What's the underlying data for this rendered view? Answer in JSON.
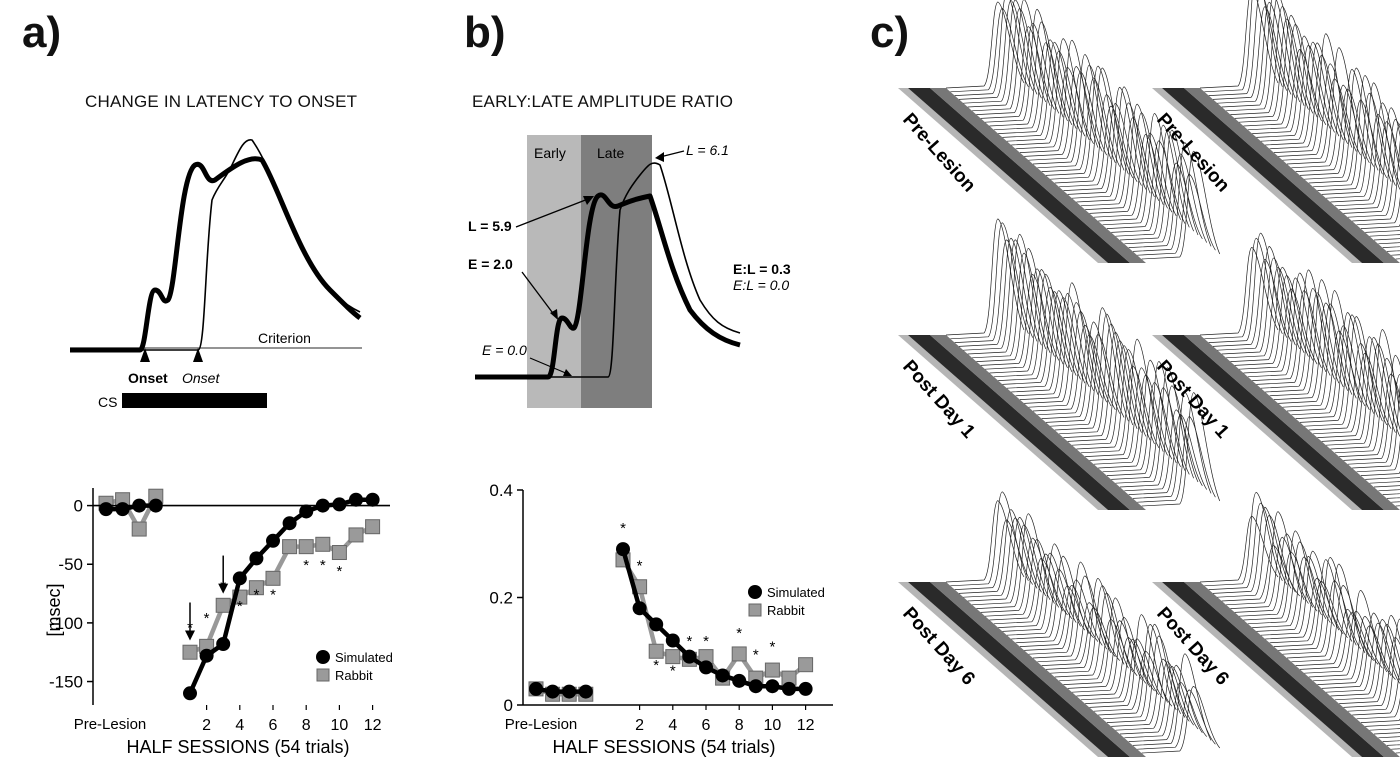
{
  "panels": {
    "a": {
      "letter": "a)",
      "title": "CHANGE IN LATENCY TO ONSET",
      "labels": {
        "criterion": "Criterion",
        "onset_bold": "Onset",
        "onset_italic": "Onset",
        "cs": "CS"
      }
    },
    "b": {
      "letter": "b)",
      "title": "EARLY:LATE AMPLITUDE RATIO",
      "labels": {
        "early": "Early",
        "late": "Late",
        "L61": "L = 6.1",
        "L59": "L = 5.9",
        "E20": "E = 2.0",
        "E00": "E = 0.0",
        "EL03": "E:L = 0.3",
        "EL00": "E:L = 0.0"
      }
    },
    "c": {
      "letter": "c)",
      "row_labels": [
        "Pre-Lesion",
        "Post Day 1",
        "Post Day 6"
      ]
    }
  },
  "chart_data": [
    {
      "type": "line",
      "ylabel": "[msec]",
      "xlabel": "HALF SESSIONS (54 trials)",
      "ylim": [
        -170,
        15
      ],
      "yticks": [
        0,
        -50,
        -100,
        -150
      ],
      "yticklabels": [
        "0",
        "-50",
        "-100",
        "-150"
      ],
      "xtick_labels": [
        "Pre-Lesion",
        "2",
        "4",
        "6",
        "8",
        "10",
        "12"
      ],
      "prelesion_x": [
        1,
        2,
        3,
        4
      ],
      "postlesion_x": [
        1,
        2,
        3,
        4,
        5,
        6,
        7,
        8,
        9,
        10,
        11,
        12
      ],
      "series": [
        {
          "name": "Simulated",
          "pre": [
            -3,
            -3,
            0,
            0
          ],
          "post": [
            -160,
            -128,
            -118,
            -62,
            -45,
            -30,
            -15,
            -5,
            0,
            1,
            5,
            5
          ]
        },
        {
          "name": "Rabbit",
          "pre": [
            2,
            5,
            -20,
            8
          ],
          "post": [
            -125,
            -120,
            -85,
            -78,
            -70,
            -62,
            -35,
            -35,
            -33,
            -40,
            -25,
            -18
          ]
        }
      ],
      "stars": [
        "*",
        "*",
        "*",
        "*",
        "*",
        "*",
        "*",
        "*",
        "*"
      ],
      "arrows": [
        "↓",
        "↓"
      ],
      "legend": "bottom-right"
    },
    {
      "type": "line",
      "xlabel": "HALF SESSIONS (54 trials)",
      "ylim": [
        0,
        0.4
      ],
      "yticks": [
        0,
        0.2,
        0.4
      ],
      "yticklabels": [
        "0",
        "0.2",
        "0.4"
      ],
      "xtick_labels": [
        "Pre-Lesion",
        "2",
        "4",
        "6",
        "8",
        "10",
        "12"
      ],
      "prelesion_x": [
        1,
        2,
        3,
        4
      ],
      "postlesion_x": [
        1,
        2,
        3,
        4,
        5,
        6,
        7,
        8,
        9,
        10,
        11,
        12
      ],
      "series": [
        {
          "name": "Simulated",
          "pre": [
            0.03,
            0.025,
            0.025,
            0.025
          ],
          "post": [
            0.29,
            0.18,
            0.15,
            0.12,
            0.09,
            0.07,
            0.055,
            0.045,
            0.035,
            0.035,
            0.03,
            0.03
          ]
        },
        {
          "name": "Rabbit",
          "pre": [
            0.03,
            0.02,
            0.02,
            0.02
          ],
          "post": [
            0.27,
            0.22,
            0.1,
            0.09,
            0.085,
            0.09,
            0.05,
            0.095,
            0.05,
            0.065,
            0.05,
            0.075
          ]
        }
      ],
      "stars": [
        "*",
        "*",
        "*",
        "*",
        "*",
        "*",
        "*",
        "*",
        "*"
      ],
      "legend": "right"
    }
  ]
}
